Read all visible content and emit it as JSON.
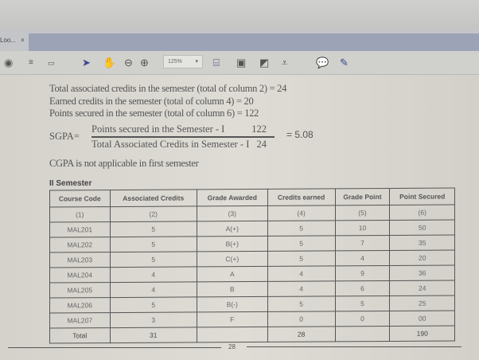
{
  "app": {
    "tab_label": "Loo...",
    "tab_close": "×",
    "zoom_level": "125%"
  },
  "toolbar": {
    "icons": [
      "home-icon",
      "single-page-icon",
      "two-page-icon",
      "select-arrow-icon",
      "hand-icon",
      "zoom-out-icon",
      "zoom-in-icon",
      "fit-page-icon",
      "rotate-icon",
      "fullscreen-icon",
      "download-icon",
      "comment-icon",
      "highlight-pen-icon"
    ]
  },
  "document": {
    "lines": [
      "Total associated credits in the semester (total of column 2) = 24",
      "Earned credits in the semester (total of column 4) = 20",
      "Points secured in the semester (total of column 6) = 122"
    ],
    "sgpa": {
      "label": "SGPA=",
      "numerator": "Points secured in the Semester - I",
      "numerator_value": "122",
      "denominator": "Total Associated Credits in Semester - I",
      "denominator_value": "24",
      "result": "= 5.08"
    },
    "cgpa_note": "CGPA is not applicable in first semester",
    "section_title": "II Semester",
    "table": {
      "headers": [
        "Course Code",
        "Associated Credits",
        "Grade Awarded",
        "Credits earned",
        "Grade Point",
        "Point Secured"
      ],
      "rows": [
        [
          "(1)",
          "(2)",
          "(3)",
          "(4)",
          "(5)",
          "(6)"
        ],
        [
          "MAL201",
          "5",
          "A(+)",
          "5",
          "10",
          "50"
        ],
        [
          "MAL202",
          "5",
          "B(+)",
          "5",
          "7",
          "35"
        ],
        [
          "MAL203",
          "5",
          "C(+)",
          "5",
          "4",
          "20"
        ],
        [
          "MAL204",
          "4",
          "A",
          "4",
          "9",
          "36"
        ],
        [
          "MAL205",
          "4",
          "B",
          "4",
          "6",
          "24"
        ],
        [
          "MAL206",
          "5",
          "B(-)",
          "5",
          "5",
          "25"
        ],
        [
          "MAL207",
          "3",
          "F",
          "0",
          "0",
          "00"
        ],
        [
          "Total",
          "31",
          "",
          "28",
          "",
          "190"
        ]
      ]
    },
    "page_number": "28"
  }
}
